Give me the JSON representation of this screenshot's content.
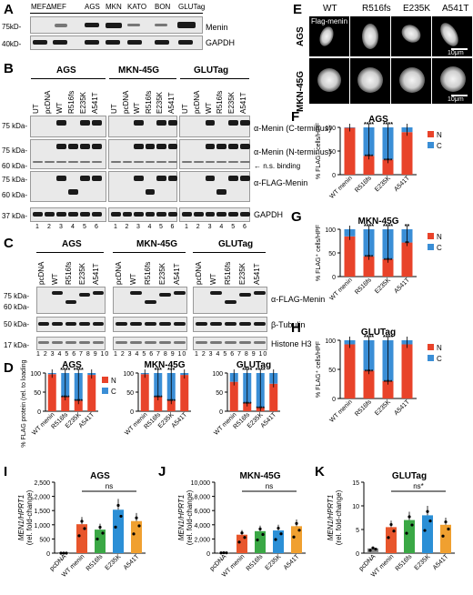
{
  "panels": {
    "A": "A",
    "B": "B",
    "C": "C",
    "D": "D",
    "E": "E",
    "F": "F",
    "G": "G",
    "H": "H",
    "I": "I",
    "J": "J",
    "K": "K"
  },
  "panelA": {
    "lanes": [
      "MEFΔ",
      "MEF",
      "AGS",
      "MKN",
      "KATO",
      "BON",
      "GLUTag"
    ],
    "markers": [
      "75kD-",
      "40kD-"
    ],
    "labels": [
      "Menin",
      "GAPDH"
    ]
  },
  "panelB": {
    "groups": [
      "AGS",
      "MKN-45G",
      "GLUTag"
    ],
    "lanes": [
      "UT",
      "pcDNA",
      "WT",
      "R516fs",
      "E235K",
      "A541T"
    ],
    "markers": [
      "75 kDa-",
      "75 kDa-",
      "60 kDa-",
      "75 kDa-",
      "60 kDa-",
      "37 kDa-"
    ],
    "labels": [
      "α-Menin (C-terminus)",
      "α-Menin (N-terminus)",
      "← n.s. binding",
      "α-FLAG-Menin",
      "GAPDH"
    ],
    "numbers": [
      "1",
      "2",
      "3",
      "4",
      "5",
      "6"
    ]
  },
  "panelC": {
    "groups": [
      "AGS",
      "MKN-45G",
      "GLUTag"
    ],
    "lanes": [
      "pcDNA",
      "WT",
      "R516fs",
      "E235K",
      "A541T"
    ],
    "markers": [
      "75 kDa-",
      "60 kDa-",
      "50 kDa-",
      "17 kDa-"
    ],
    "labels": [
      "α-FLAG-Menin",
      "β-Tubulin",
      "Histone H3"
    ],
    "numbers": "1 2 3 4 5 6 7 8 9 10"
  },
  "panelE": {
    "columns": [
      "WT",
      "R516fs",
      "E235K",
      "A541T"
    ],
    "header": "Flag-menin",
    "rows": [
      "AGS",
      "MKN-45G"
    ],
    "scale": [
      "10μm",
      "10μm"
    ]
  },
  "chart_data": [
    {
      "panel": "D",
      "type": "bar",
      "title": "AGS",
      "ylabel": "% FLAG protein (rel. to loading control)",
      "categories": [
        "WT menin",
        "R516fs",
        "E235K",
        "A541T"
      ],
      "ylim": [
        0,
        100
      ],
      "series": [
        {
          "name": "N",
          "values": [
            97,
            38,
            28,
            95
          ]
        },
        {
          "name": "C",
          "values": [
            3,
            62,
            72,
            5
          ]
        }
      ],
      "sig_top": [
        "",
        "****",
        "****",
        ""
      ],
      "sig_mid": [
        "",
        "****",
        "****",
        ""
      ],
      "legend": "right"
    },
    {
      "panel": "D",
      "type": "bar",
      "title": "MKN-45G",
      "categories": [
        "WT menin",
        "R516fs",
        "E235K",
        "A541T"
      ],
      "ylim": [
        0,
        100
      ],
      "series": [
        {
          "name": "N",
          "values": [
            97,
            38,
            28,
            95
          ]
        },
        {
          "name": "C",
          "values": [
            3,
            62,
            72,
            5
          ]
        }
      ],
      "sig_top": [
        "",
        "***",
        "***",
        ""
      ],
      "sig_mid": [
        "",
        "****",
        "****",
        ""
      ]
    },
    {
      "panel": "D",
      "type": "bar",
      "title": "GLUTag",
      "categories": [
        "WT menin",
        "R516fs",
        "E235K",
        "A541T"
      ],
      "ylim": [
        0,
        100
      ],
      "series": [
        {
          "name": "N",
          "values": [
            77,
            22,
            10,
            72
          ]
        },
        {
          "name": "C",
          "values": [
            23,
            78,
            90,
            28
          ]
        }
      ],
      "sig_top": [
        "",
        "****",
        "****",
        ""
      ],
      "sig_mid": [
        "",
        "****",
        "****",
        ""
      ]
    },
    {
      "panel": "F",
      "type": "bar",
      "title": "AGS",
      "ylabel": "% FLAG⁺ cells/HPF",
      "categories": [
        "WT menin",
        "R516fs",
        "E235K",
        "A541T"
      ],
      "ylim": [
        0,
        100
      ],
      "series": [
        {
          "name": "N",
          "values": [
            99,
            40,
            32,
            90
          ]
        },
        {
          "name": "C",
          "values": [
            1,
            60,
            68,
            10
          ]
        }
      ],
      "sig_top": [
        "",
        "****",
        "****",
        ""
      ],
      "sig_mid": [
        "",
        "****",
        "****",
        ""
      ],
      "legend": "right"
    },
    {
      "panel": "G",
      "type": "bar",
      "title": "MKN-45G",
      "ylabel": "% FLAG⁺ cells/HPF",
      "categories": [
        "WT menin",
        "R516fs",
        "E235K",
        "A541T"
      ],
      "ylim": [
        0,
        100
      ],
      "series": [
        {
          "name": "N",
          "values": [
            85,
            43,
            37,
            72
          ]
        },
        {
          "name": "C",
          "values": [
            15,
            57,
            63,
            28
          ]
        }
      ],
      "sig_top": [
        "",
        "****",
        "****",
        "**"
      ],
      "sig_mid": [
        "",
        "****",
        "****",
        "**"
      ],
      "legend": "right"
    },
    {
      "panel": "H",
      "type": "bar",
      "title": "GLUTag",
      "ylabel": "% FLAG⁺ cells/HPF",
      "categories": [
        "WT menin",
        "R516fs",
        "E235K",
        "A541T"
      ],
      "ylim": [
        0,
        100
      ],
      "series": [
        {
          "name": "N",
          "values": [
            93,
            48,
            30,
            93
          ]
        },
        {
          "name": "C",
          "values": [
            7,
            52,
            70,
            7
          ]
        }
      ],
      "sig_top": [
        "",
        "****",
        "****",
        ""
      ],
      "sig_mid": [
        "",
        "****",
        "****",
        ""
      ],
      "legend": "right"
    },
    {
      "panel": "I",
      "type": "bar",
      "title": "AGS",
      "ylabel": "MEN1/HPRT1",
      "ylabel2": "(rel. fold-change)",
      "categories": [
        "pcDNA",
        "WT menin",
        "R516fs",
        "E235K",
        "A541T"
      ],
      "ylim": [
        0,
        2500
      ],
      "yticks": [
        "0",
        "500",
        "1,000",
        "1,500",
        "2,000",
        "2,500"
      ],
      "values": [
        1,
        1020,
        830,
        1530,
        1130
      ],
      "colors": [
        "#888888",
        "#e8562c",
        "#3aa845",
        "#2b8fd6",
        "#f0a030"
      ],
      "sig": "ns"
    },
    {
      "panel": "J",
      "type": "bar",
      "title": "MKN-45G",
      "ylabel": "MEN1/HPRT1",
      "ylabel2": "(rel. fold-change)",
      "categories": [
        "pcDNA",
        "WT menin",
        "R516fs",
        "E235K",
        "A541T"
      ],
      "ylim": [
        0,
        10000
      ],
      "yticks": [
        "0",
        "2,000",
        "4,000",
        "6,000",
        "8,000",
        "10,000"
      ],
      "values": [
        50,
        2600,
        3100,
        3200,
        3800
      ],
      "colors": [
        "#888888",
        "#e8562c",
        "#3aa845",
        "#2b8fd6",
        "#f0a030"
      ],
      "sig": "ns"
    },
    {
      "panel": "K",
      "type": "bar",
      "title": "GLUTag",
      "ylabel": "MEN1/HPRT1",
      "ylabel2": "(rel. fold-change)",
      "categories": [
        "pcDNA",
        "WT menin",
        "R516fs",
        "E235K",
        "A541T"
      ],
      "ylim": [
        0,
        15
      ],
      "yticks": [
        "0",
        "5",
        "10",
        "15"
      ],
      "values": [
        1,
        5.5,
        7,
        8,
        6
      ],
      "colors": [
        "#888888",
        "#e8562c",
        "#3aa845",
        "#2b8fd6",
        "#f0a030"
      ],
      "sig": "ns*"
    }
  ],
  "colors": {
    "N": "#e8432a",
    "C": "#3a8ed6"
  }
}
